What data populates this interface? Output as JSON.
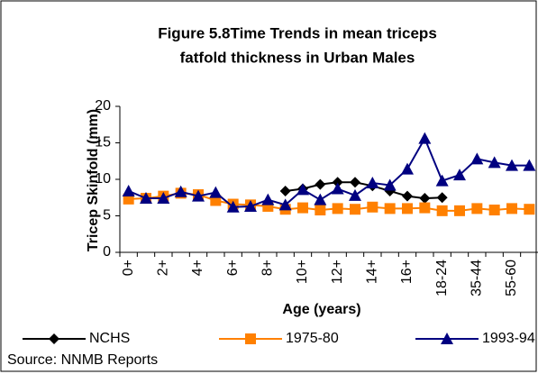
{
  "chart_data": {
    "type": "line",
    "title": [
      "Figure 5.8Time Trends in mean triceps",
      "fatfold thickness in Urban Males"
    ],
    "y_label": "Tricep Skinfold (mm)",
    "x_label": "Age (years)",
    "categories": [
      "0+",
      null,
      "2+",
      null,
      "4+",
      null,
      "6+",
      null,
      "8+",
      null,
      "10+",
      null,
      "12+",
      null,
      "14+",
      null,
      "16+",
      null,
      "18-24",
      null,
      "35-44",
      null,
      "55-60",
      null
    ],
    "series": [
      {
        "name": "NCHS",
        "color": "#000000",
        "marker": "diamond",
        "values": [
          null,
          null,
          null,
          null,
          null,
          null,
          null,
          null,
          null,
          8.4,
          8.7,
          9.3,
          9.6,
          9.6,
          9.1,
          8.4,
          7.7,
          7.4,
          7.5,
          null,
          null,
          null,
          null,
          null
        ]
      },
      {
        "name": "1975-80",
        "color": "#ff8000",
        "marker": "square",
        "values": [
          7.3,
          7.4,
          7.7,
          8.1,
          7.9,
          7.1,
          6.6,
          6.5,
          6.3,
          5.9,
          6.1,
          5.8,
          6.0,
          5.9,
          6.2,
          6.0,
          6.0,
          6.1,
          5.7,
          5.7,
          6.0,
          5.8,
          6.0,
          5.9
        ]
      },
      {
        "name": "1993-94",
        "color": "#000080",
        "marker": "triangle",
        "values": [
          8.4,
          7.4,
          7.4,
          8.3,
          7.7,
          8.2,
          6.2,
          6.3,
          7.2,
          6.5,
          8.6,
          7.2,
          8.7,
          7.8,
          9.5,
          9.2,
          11.4,
          15.6,
          9.8,
          10.6,
          12.8,
          12.3,
          11.9,
          11.9
        ]
      }
    ],
    "ylim": [
      0,
      20
    ],
    "yticks": [
      0,
      5,
      10,
      15,
      20
    ],
    "grid": false,
    "source": "Source: NNMB Reports"
  }
}
